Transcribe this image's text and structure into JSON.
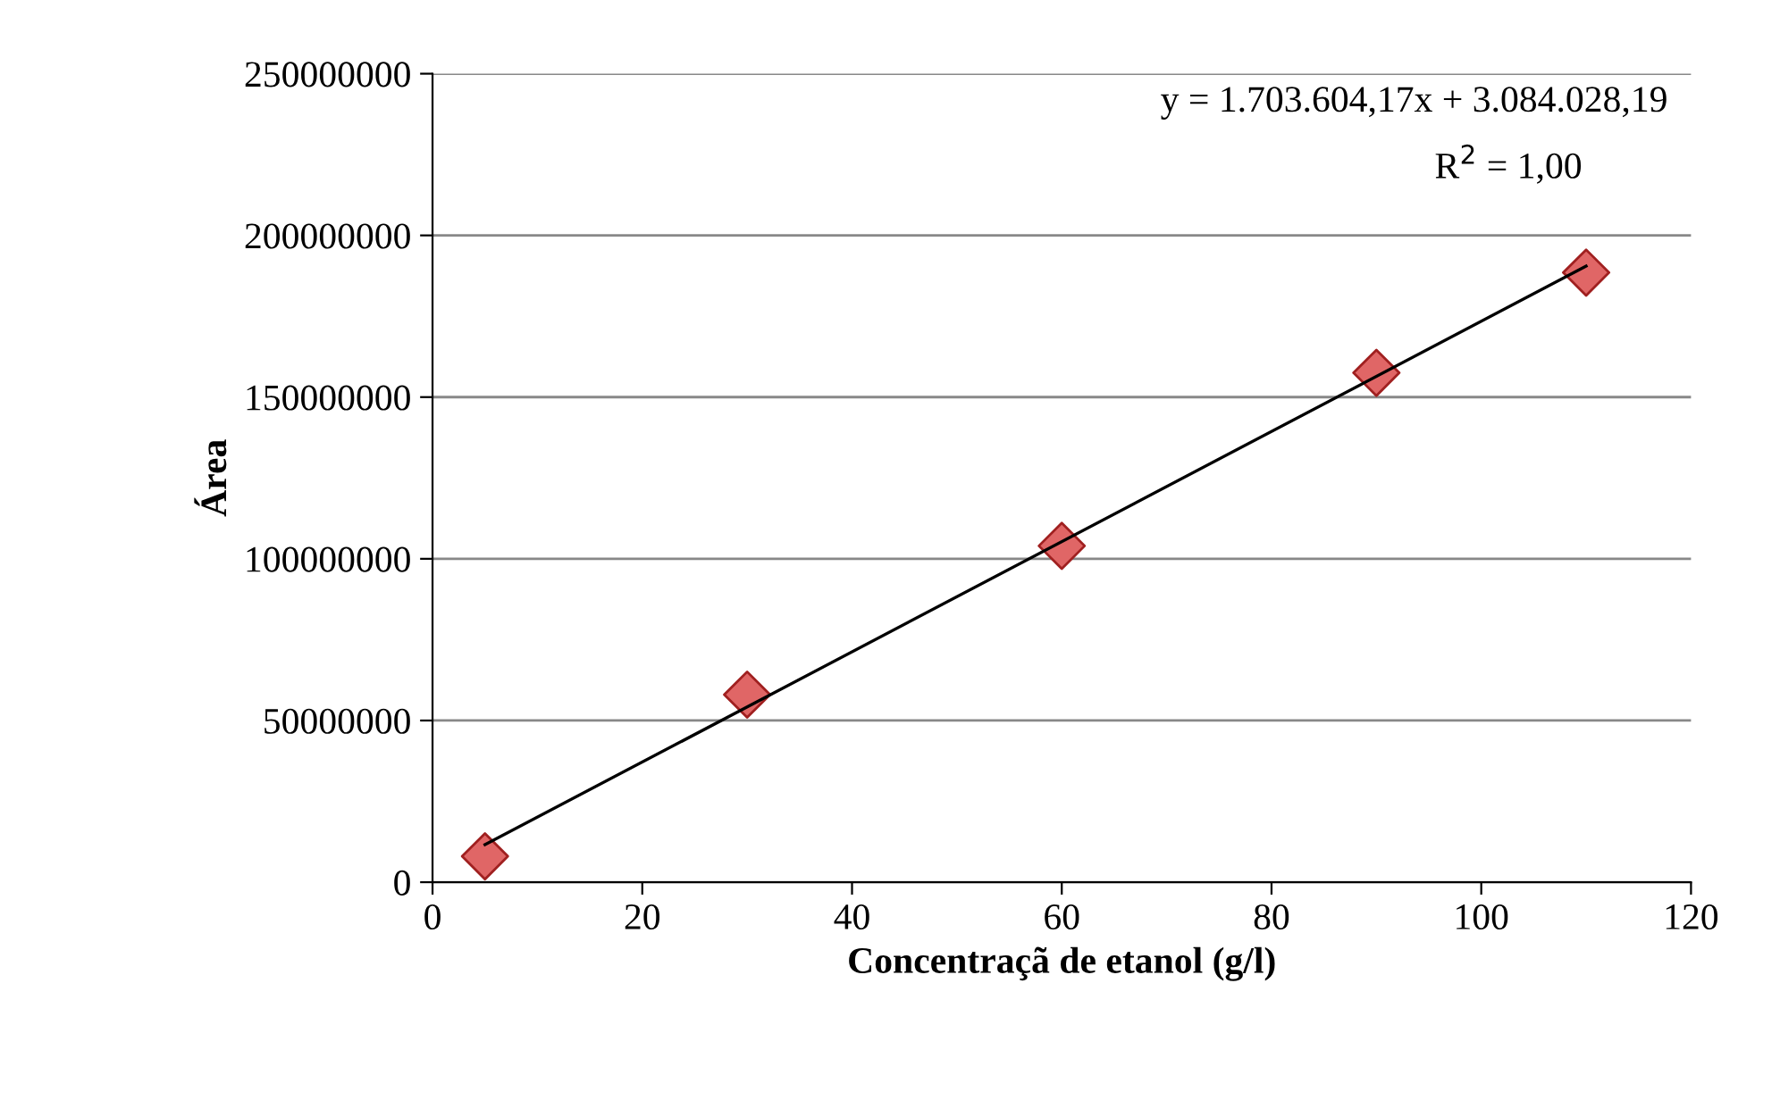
{
  "chart_data": {
    "type": "scatter",
    "xlabel": "Concentraçã de etanol (g/l)",
    "ylabel": "Área",
    "x": [
      5,
      30,
      60,
      90,
      110
    ],
    "series": [
      {
        "color": "#e06666",
        "marker": "diamond",
        "values": [
          8000000,
          58000000,
          104000000,
          157500000,
          188500000
        ]
      },
      {
        "type": "line",
        "color": "#000000",
        "marker": "none",
        "x": [
          5,
          110
        ],
        "values": [
          11600000,
          190500000
        ]
      }
    ],
    "annotations": [
      "y = 1.703.604,17x + 3.084.028,19",
      "R$^{2}$ = 1,00"
    ],
    "xlim": [
      0,
      120
    ],
    "xticks": [
      0,
      20,
      40,
      60,
      80,
      100,
      120
    ],
    "ylim": [
      0,
      250000000
    ],
    "yticks": [
      0,
      50000000,
      100000000,
      150000000,
      200000000,
      250000000
    ],
    "grid": "y",
    "legend": false
  }
}
